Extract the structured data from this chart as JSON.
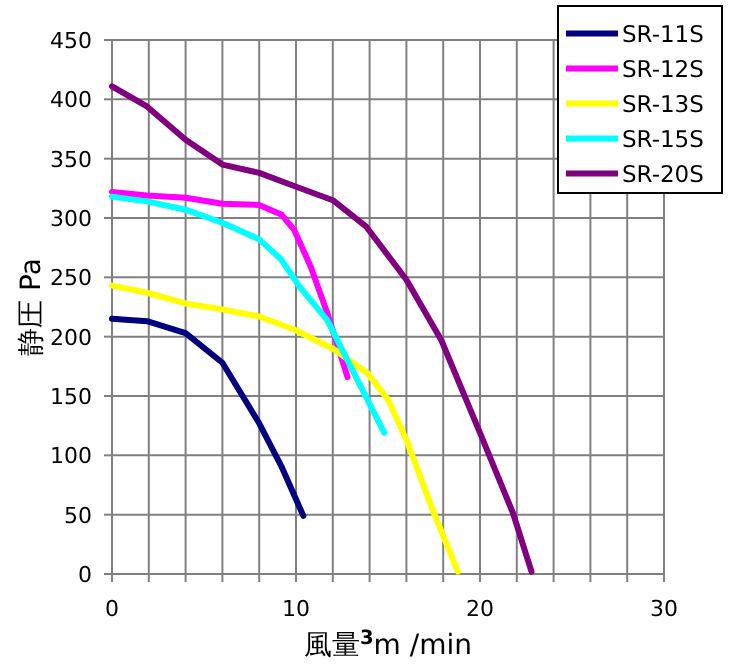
{
  "chart_data": {
    "type": "line",
    "xlabel": "風量$^{3}$m /min",
    "ylabel": "静圧 Pa",
    "xlim": [
      0,
      30
    ],
    "ylim": [
      0,
      450
    ],
    "xticks": [
      0,
      {
        "value": 2,
        "label": null
      },
      {
        "value": 4,
        "label": null
      },
      {
        "value": 6,
        "label": null
      },
      {
        "value": 8,
        "label": null
      },
      10,
      {
        "value": 12,
        "label": null
      },
      {
        "value": 14,
        "label": null
      },
      {
        "value": 16,
        "label": null
      },
      {
        "value": 18,
        "label": null
      },
      20,
      {
        "value": 22,
        "label": null
      },
      {
        "value": 24,
        "label": null
      },
      {
        "value": 26,
        "label": null
      },
      {
        "value": 28,
        "label": null
      },
      30
    ],
    "yticks": [
      0,
      50,
      100,
      150,
      200,
      250,
      300,
      350,
      400,
      450
    ],
    "grid": true,
    "legend": "top right",
    "marker": "none",
    "line_style": "solid",
    "series": [
      {
        "name": "SR-11S",
        "color": "#000080",
        "x": [
          0,
          1.9,
          4.0,
          6.0,
          8.0,
          9.2,
          10.4
        ],
        "values": [
          215,
          213,
          203,
          178,
          127,
          91,
          49
        ]
      },
      {
        "name": "SR-12S",
        "color": "#ff00ff",
        "x": [
          0,
          1.9,
          4.0,
          6.0,
          8.0,
          9.2,
          9.9,
          10.8,
          11.7,
          12.8
        ],
        "values": [
          322,
          319,
          317,
          312,
          311,
          303,
          290,
          259,
          220,
          166
        ]
      },
      {
        "name": "SR-13S",
        "color": "#ffff00",
        "x": [
          0,
          1.9,
          4.0,
          6.0,
          8.0,
          9.9,
          12.1,
          13.9,
          15.0,
          16.0,
          17.5,
          18.8
        ],
        "values": [
          243,
          237,
          228,
          223,
          217,
          206,
          189,
          169,
          147,
          113,
          51,
          2
        ]
      },
      {
        "name": "SR-15S",
        "color": "#00ffff",
        "x": [
          0,
          1.9,
          4.0,
          6.0,
          8.0,
          9.2,
          10.2,
          11.7,
          12.8,
          14.8
        ],
        "values": [
          318,
          314,
          307,
          296,
          282,
          265,
          242,
          214,
          180,
          119
        ]
      },
      {
        "name": "SR-20S",
        "color": "#800080",
        "x": [
          0,
          1.9,
          4.0,
          6.0,
          8.0,
          9.9,
          12.0,
          13.8,
          16.0,
          17.9,
          20.0,
          21.8,
          22.8
        ],
        "values": [
          411,
          394,
          366,
          345,
          338,
          327,
          315,
          293,
          248,
          197,
          119,
          51,
          2
        ]
      }
    ]
  }
}
